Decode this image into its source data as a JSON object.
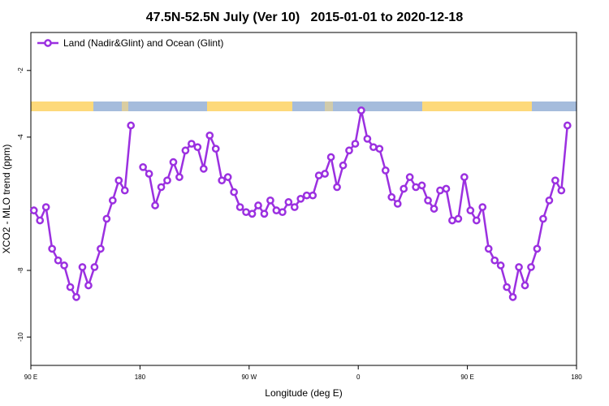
{
  "chart_data": {
    "type": "line",
    "title": "47.5N-52.5N July (Ver 10)   2015-01-01 to 2020-12-18",
    "x_label": "Longitude (deg E)",
    "y_label": "XCO2 - MLO trend (ppm)",
    "xlim": [
      90,
      540
    ],
    "ylim": [
      -10.85,
      -0.86
    ],
    "xticks": [
      {
        "value": 90,
        "label": "90 E"
      },
      {
        "value": 180,
        "label": "180"
      },
      {
        "value": 270,
        "label": "90 W"
      },
      {
        "value": 360,
        "label": "0"
      },
      {
        "value": 450,
        "label": "90 E"
      },
      {
        "value": 540,
        "label": "180"
      }
    ],
    "yticks": [
      -10,
      -8,
      -4,
      -2
    ],
    "legend": "top-left",
    "x": [
      92.5,
      97.5,
      102.5,
      107.5,
      112.5,
      117.5,
      122.5,
      127.5,
      132.5,
      137.5,
      142.5,
      147.5,
      152.5,
      157.5,
      162.5,
      167.5,
      172.5,
      177.5,
      182.5,
      187.5,
      192.5,
      197.5,
      202.5,
      207.5,
      212.5,
      217.5,
      222.5,
      227.5,
      232.5,
      237.5,
      242.5,
      247.5,
      252.5,
      257.5,
      262.5,
      267.5,
      272.5,
      277.5,
      282.5,
      287.5,
      292.5,
      297.5,
      302.5,
      307.5,
      312.5,
      317.5,
      322.5,
      327.5,
      332.5,
      337.5,
      342.5,
      347.5,
      352.5,
      357.5,
      362.5,
      367.5,
      372.5,
      377.5,
      382.5,
      387.5,
      392.5,
      397.5,
      402.5,
      407.5,
      412.5,
      417.5,
      422.5,
      427.5,
      432.5,
      437.5,
      442.5,
      447.5,
      452.5,
      457.5,
      462.5,
      467.5,
      472.5,
      477.5,
      482.5,
      487.5,
      492.5,
      497.5,
      502.5,
      507.5,
      512.5,
      517.5,
      522.5,
      527.5,
      532.5
    ],
    "series": [
      {
        "name": "Land (Nadir&Glint) and Ocean (Glint)",
        "color": "#9b30e0",
        "values": [
          -6.2,
          -6.5,
          -6.1,
          -7.35,
          -7.7,
          -7.85,
          -8.5,
          -8.8,
          -7.9,
          -8.45,
          -7.9,
          -7.35,
          -6.45,
          -5.9,
          -5.3,
          -5.6,
          -3.65,
          null,
          -4.9,
          -5.1,
          -6.05,
          -5.5,
          -5.3,
          -4.75,
          -5.2,
          -4.4,
          -4.2,
          -4.3,
          -4.95,
          -3.95,
          -4.35,
          -5.3,
          -5.2,
          -5.65,
          -6.1,
          -6.25,
          -6.3,
          -6.05,
          -6.3,
          -5.9,
          -6.2,
          -6.25,
          -5.95,
          -6.1,
          -5.85,
          -5.75,
          -5.75,
          -5.15,
          -5.1,
          -4.6,
          -5.5,
          -4.85,
          -4.4,
          -4.2,
          -3.2,
          -4.05,
          -4.3,
          -4.35,
          -5.0,
          -5.8,
          -6.0,
          -5.55,
          -5.2,
          -5.5,
          -5.45,
          -5.9,
          -6.15,
          -5.6,
          -5.55,
          -6.5,
          -6.45,
          -5.2,
          -6.2,
          -6.5,
          -6.1,
          -7.35,
          -7.7,
          -7.85,
          -8.5,
          -8.8,
          -7.9,
          -8.45,
          -7.9,
          -7.35,
          -6.45,
          -5.9,
          -5.3,
          -5.6,
          -3.65
        ]
      }
    ]
  }
}
